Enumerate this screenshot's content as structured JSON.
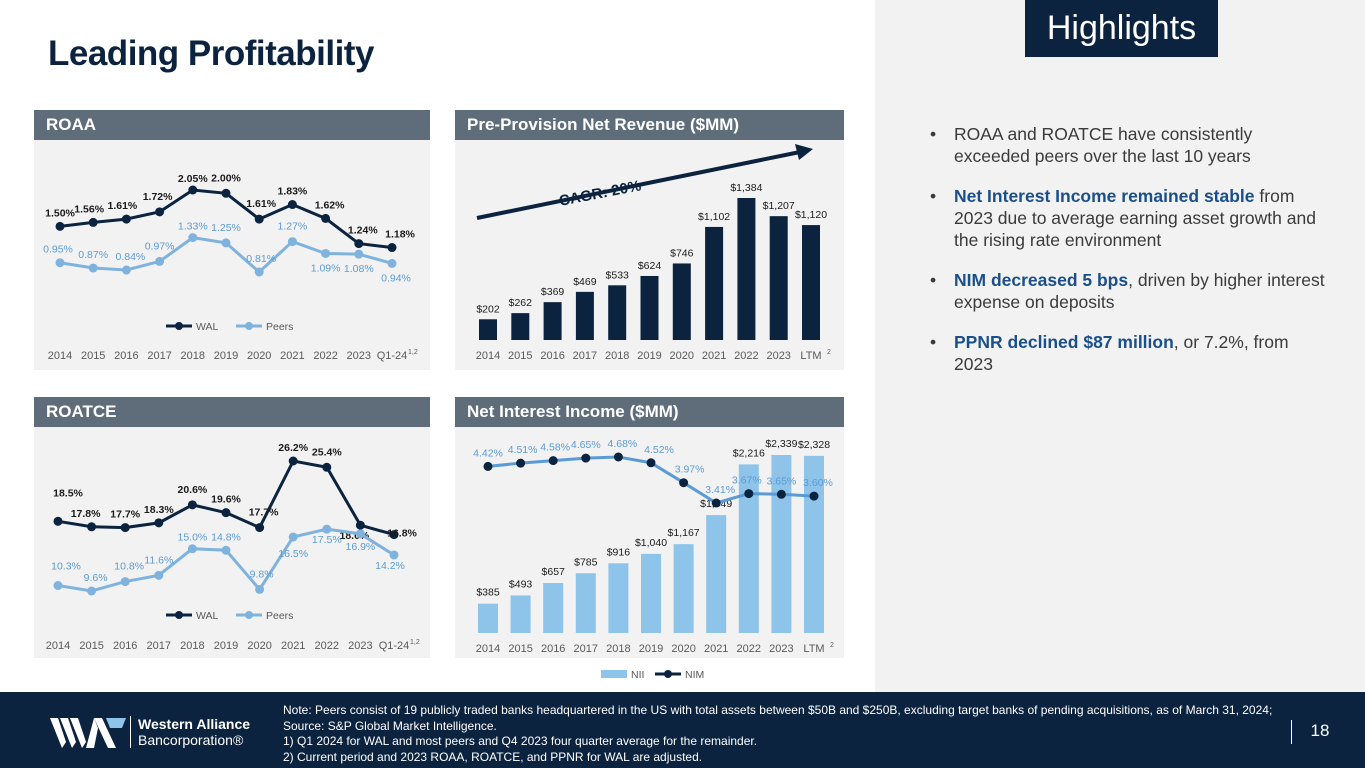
{
  "page": {
    "title": "Leading Profitability",
    "page_number": "18"
  },
  "highlights": {
    "label": "Highlights",
    "bullets": [
      {
        "bold": "",
        "text": "ROAA and ROATCE have consistently exceeded peers over the last 10 years"
      },
      {
        "bold": "Net Interest Income remained stable",
        "text": " from 2023 due to average earning asset growth and the rising rate environment"
      },
      {
        "bold": "NIM decreased 5 bps",
        "text": ", driven by higher interest expense on deposits"
      },
      {
        "bold": "PPNR declined $87 million",
        "text": ", or 7.2%, from 2023"
      }
    ]
  },
  "footer": {
    "logo_line1": "Western Alliance",
    "logo_line2": "Bancorporation®",
    "note_main": "Note: Peers consist of 19 publicly traded banks headquartered in the US with total assets between $50B and $250B, excluding target banks of pending acquisitions, as of March 31, 2024; Source: S&P Global Market Intelligence.",
    "note_1": "1)    Q1 2024 for WAL and most peers and Q4 2023 four quarter average for the remainder.",
    "note_2": "2)    Current period and 2023 ROAA, ROATCE, and PPNR for WAL are adjusted."
  },
  "colors": {
    "navy": "#0c2340",
    "light_blue": "#7fb3dd",
    "bar_light": "#8ec3ea",
    "header_gray": "#5f6d7a"
  },
  "chart_data": [
    {
      "type": "line",
      "title": "ROAA",
      "categories": [
        "2014",
        "2015",
        "2016",
        "2017",
        "2018",
        "2019",
        "2020",
        "2021",
        "2022",
        "2023",
        "Q1-24"
      ],
      "category_superscript": {
        "index": 10,
        "text": "1,2"
      },
      "series": [
        {
          "name": "WAL",
          "values": [
            1.5,
            1.56,
            1.61,
            1.72,
            2.05,
            2.0,
            1.61,
            1.83,
            1.62,
            1.24,
            1.18
          ],
          "labels": [
            "1.50%",
            "1.56%",
            "1.61%",
            "1.72%",
            "2.05%",
            "2.00%",
            "1.61%",
            "1.83%",
            "1.62%",
            "1.24%",
            "1.18%"
          ]
        },
        {
          "name": "Peers",
          "values": [
            0.95,
            0.87,
            0.84,
            0.97,
            1.33,
            1.25,
            0.81,
            1.27,
            1.09,
            1.08,
            0.94
          ],
          "labels": [
            "0.95%",
            "0.87%",
            "0.84%",
            "0.97%",
            "1.33%",
            "1.25%",
            "0.81%",
            "1.27%",
            "1.09%",
            "1.08%",
            "0.94%"
          ]
        }
      ],
      "legend": "bottom"
    },
    {
      "type": "bar",
      "title": "Pre-Provision Net Revenue ($MM)",
      "categories": [
        "2014",
        "2015",
        "2016",
        "2017",
        "2018",
        "2019",
        "2020",
        "2021",
        "2022",
        "2023",
        "LTM"
      ],
      "category_superscript": {
        "index": 10,
        "text": "2"
      },
      "values": [
        202,
        262,
        369,
        469,
        533,
        624,
        746,
        1102,
        1384,
        1207,
        1120
      ],
      "labels": [
        "$202",
        "$262",
        "$369",
        "$469",
        "$533",
        "$624",
        "$746",
        "$1,102",
        "$1,384",
        "$1,207",
        "$1,120"
      ],
      "annotation": "CAGR: 20%"
    },
    {
      "type": "line",
      "title": "ROATCE",
      "categories": [
        "2014",
        "2015",
        "2016",
        "2017",
        "2018",
        "2019",
        "2020",
        "2021",
        "2022",
        "2023",
        "Q1-24"
      ],
      "category_superscript": {
        "index": 10,
        "text": "1,2"
      },
      "series": [
        {
          "name": "WAL",
          "values": [
            18.5,
            17.8,
            17.7,
            18.3,
            20.6,
            19.6,
            17.7,
            26.2,
            25.4,
            18.0,
            16.8
          ],
          "labels": [
            "18.5%",
            "17.8%",
            "17.7%",
            "18.3%",
            "20.6%",
            "19.6%",
            "17.7%",
            "26.2%",
            "25.4%",
            "18.0%",
            "16.8%"
          ]
        },
        {
          "name": "Peers",
          "values": [
            10.3,
            9.6,
            10.8,
            11.6,
            15.0,
            14.8,
            9.8,
            16.5,
            17.5,
            16.9,
            14.2
          ],
          "labels": [
            "10.3%",
            "9.6%",
            "10.8%",
            "11.6%",
            "15.0%",
            "14.8%",
            "9.8%",
            "16.5%",
            "17.5%",
            "16.9%",
            "14.2%"
          ]
        }
      ],
      "legend": "bottom"
    },
    {
      "type": "bar",
      "title": "Net Interest Income ($MM)",
      "categories": [
        "2014",
        "2015",
        "2016",
        "2017",
        "2018",
        "2019",
        "2020",
        "2021",
        "2022",
        "2023",
        "LTM"
      ],
      "category_superscript": {
        "index": 10,
        "text": "2"
      },
      "series": [
        {
          "name": "NII",
          "type": "bar",
          "values": [
            385,
            493,
            657,
            785,
            916,
            1040,
            1167,
            1549,
            2216,
            2339,
            2328
          ],
          "labels": [
            "$385",
            "$493",
            "$657",
            "$785",
            "$916",
            "$1,040",
            "$1,167",
            "$1,549",
            "$2,216",
            "$2,339",
            "$2,328"
          ]
        },
        {
          "name": "NIM",
          "type": "line",
          "values": [
            4.42,
            4.51,
            4.58,
            4.65,
            4.68,
            4.52,
            3.97,
            3.41,
            3.67,
            3.65,
            3.6
          ],
          "labels": [
            "4.42%",
            "4.51%",
            "4.58%",
            "4.65%",
            "4.68%",
            "4.52%",
            "3.97%",
            "3.41%",
            "3.67%",
            "3.65%",
            "3.60%"
          ]
        }
      ],
      "legend": "bottom"
    }
  ]
}
